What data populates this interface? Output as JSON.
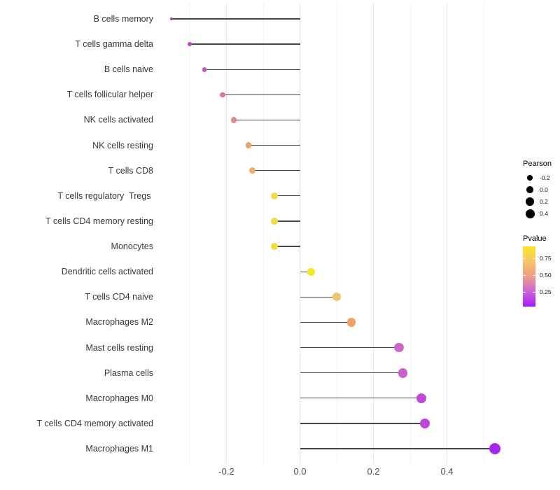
{
  "chart_data": {
    "type": "scatter",
    "variant": "horizontal-lollipop",
    "title": "",
    "xlabel": "",
    "ylabel": "",
    "grid": "vertical-major-and-minor",
    "xlim": [
      -0.39,
      0.57
    ],
    "x_ticks": [
      -0.2,
      0.0,
      0.2,
      0.4
    ],
    "x_tick_labels": [
      "-0.2",
      "0.0",
      "0.2",
      "0.4"
    ],
    "minor_gridlines": [
      -0.3,
      -0.1,
      0.1,
      0.3,
      0.5
    ],
    "size_encoding": "Pearson",
    "color_encoding": "Pvalue",
    "categories": [
      "B cells memory",
      "T cells gamma delta",
      "B cells naive",
      "T cells follicular helper",
      "NK cells activated",
      "NK cells resting",
      "T cells CD8",
      "T cells regulatory  Tregs ",
      "T cells CD4 memory resting",
      "Monocytes",
      "Dendritic cells activated",
      "T cells CD4 naive",
      "Macrophages M2",
      "Mast cells resting",
      "Plasma cells",
      "Macrophages M0",
      "T cells CD4 memory activated",
      "Macrophages M1"
    ],
    "series": [
      {
        "name": "Pearson correlation",
        "values": [
          -0.35,
          -0.3,
          -0.26,
          -0.21,
          -0.18,
          -0.14,
          -0.13,
          -0.07,
          -0.07,
          -0.07,
          0.03,
          0.1,
          0.14,
          0.27,
          0.28,
          0.33,
          0.34,
          0.53
        ]
      }
    ],
    "point_colors": [
      "#9E32C8",
      "#BA44C4",
      "#C658BE",
      "#D6788F",
      "#DF8A85",
      "#ECA263",
      "#EFAD68",
      "#F0DC48",
      "#F0DC48",
      "#F0DC49",
      "#F6E81E",
      "#F0C46F",
      "#EFA362",
      "#CD68C6",
      "#CA60CC",
      "#BE4AD8",
      "#BC45DB",
      "#A826EB"
    ]
  },
  "legend_size": {
    "title": "Pearson",
    "labels": [
      "-0.2",
      "0.0",
      "0.2",
      "0.4"
    ]
  },
  "legend_color": {
    "title": "Pvalue",
    "labels": [
      "0.75",
      "0.50",
      "0.25"
    ],
    "gradient": [
      "#FAE623",
      "#F6C567",
      "#EE9D87",
      "#CB63D9",
      "#A81EF5"
    ]
  }
}
